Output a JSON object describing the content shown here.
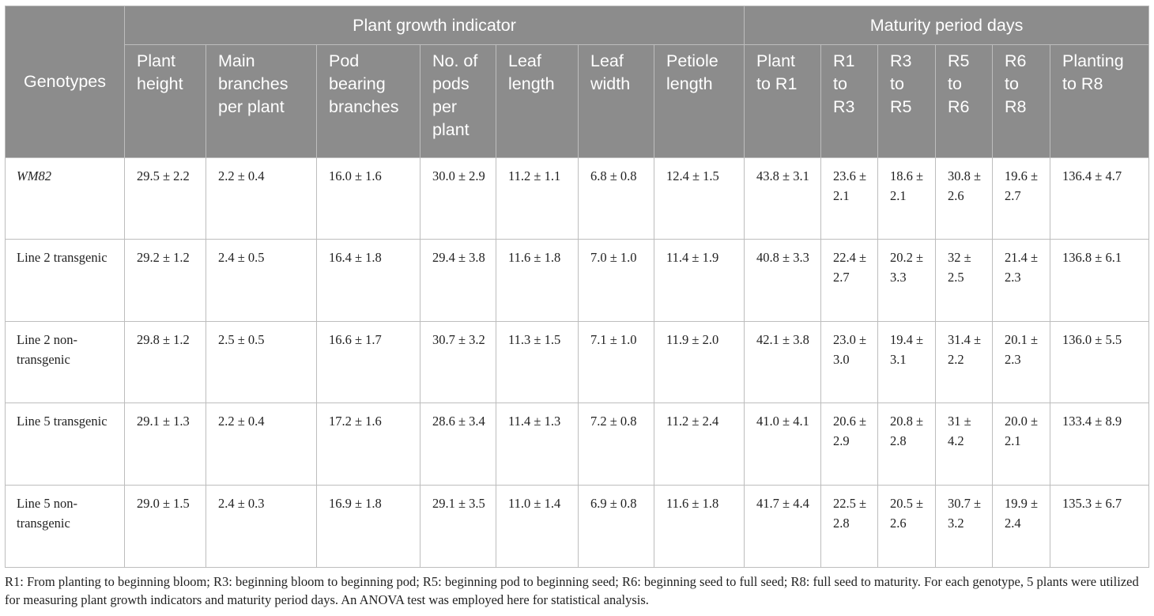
{
  "header": {
    "genotypes": "Genotypes",
    "group_growth": "Plant growth indicator",
    "group_maturity": "Maturity period days",
    "columns": [
      "Plant height",
      "Main branches per plant",
      "Pod bearing branches",
      "No. of pods per plant",
      "Leaf length",
      "Leaf width",
      "Petiole length",
      "Plant to R1",
      "R1 to R3",
      "R3 to R5",
      "R5 to R6",
      "R6 to R8",
      "Planting to R8"
    ]
  },
  "rows": [
    {
      "genotype": "WM82",
      "values": [
        "29.5 ± 2.2",
        "2.2 ± 0.4",
        "16.0 ± 1.6",
        "30.0 ± 2.9",
        "11.2 ± 1.1",
        "6.8 ± 0.8",
        "12.4 ± 1.5",
        "43.8 ± 3.1",
        "23.6 ± 2.1",
        "18.6 ± 2.1",
        "30.8 ± 2.6",
        "19.6 ± 2.7",
        "136.4 ± 4.7"
      ]
    },
    {
      "genotype": "Line 2 transgenic",
      "values": [
        "29.2 ± 1.2",
        "2.4 ± 0.5",
        "16.4 ± 1.8",
        "29.4 ± 3.8",
        "11.6 ± 1.8",
        "7.0 ± 1.0",
        "11.4 ± 1.9",
        "40.8 ± 3.3",
        "22.4 ± 2.7",
        "20.2 ± 3.3",
        "32 ± 2.5",
        "21.4 ± 2.3",
        "136.8 ± 6.1"
      ]
    },
    {
      "genotype": "Line 2 non-transgenic",
      "values": [
        "29.8 ± 1.2",
        "2.5 ± 0.5",
        "16.6 ± 1.7",
        "30.7 ± 3.2",
        "11.3 ± 1.5",
        "7.1 ± 1.0",
        "11.9 ± 2.0",
        "42.1 ± 3.8",
        "23.0 ± 3.0",
        "19.4 ± 3.1",
        "31.4 ± 2.2",
        "20.1 ± 2.3",
        "136.0 ± 5.5"
      ]
    },
    {
      "genotype": "Line 5 transgenic",
      "values": [
        "29.1 ± 1.3",
        "2.2 ± 0.4",
        "17.2 ± 1.6",
        "28.6 ± 3.4",
        "11.4 ± 1.3",
        "7.2 ± 0.8",
        "11.2 ± 2.4",
        "41.0 ± 4.1",
        "20.6 ± 2.9",
        "20.8 ± 2.8",
        "31 ± 4.2",
        "20.0 ± 2.1",
        "133.4 ± 8.9"
      ]
    },
    {
      "genotype": "Line 5 non-transgenic",
      "values": [
        "29.0 ± 1.5",
        "2.4 ± 0.3",
        "16.9 ± 1.8",
        "29.1 ± 3.5",
        "11.0 ± 1.4",
        "6.9 ± 0.8",
        "11.6 ± 1.8",
        "41.7 ± 4.4",
        "22.5 ± 2.8",
        "20.5 ± 2.6",
        "30.7 ± 3.2",
        "19.9 ± 2.4",
        "135.3 ± 6.7"
      ]
    }
  ],
  "footnote": "R1: From planting to beginning bloom; R3: beginning bloom to beginning pod; R5: beginning pod to beginning seed; R6: beginning seed to full seed; R8: full seed to maturity. For each genotype, 5 plants were utilized for measuring plant growth indicators and maturity period days. An ANOVA test was employed here for statistical analysis."
}
